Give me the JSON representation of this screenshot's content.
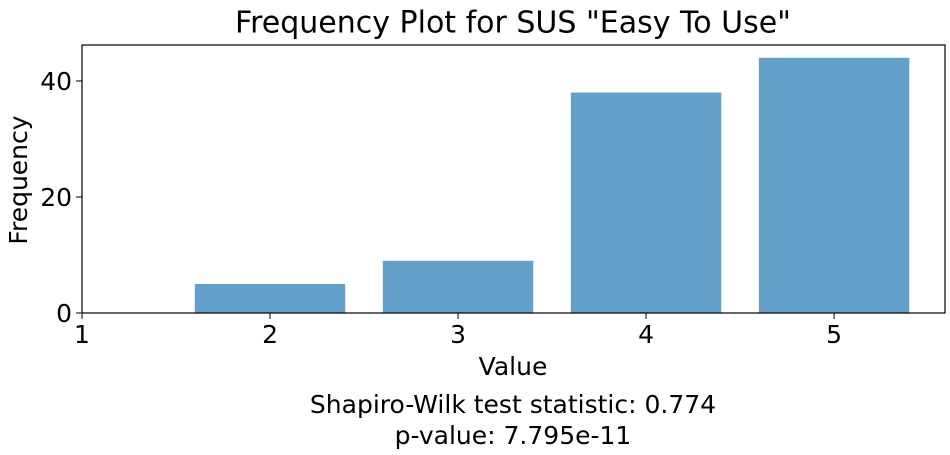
{
  "chart_data": {
    "type": "bar",
    "title": "Frequency Plot for SUS \"Easy To Use\"",
    "x_label": "Value",
    "y_label": "Frequency",
    "x": [
      2,
      3,
      4,
      5
    ],
    "values": [
      5,
      9,
      38,
      44
    ],
    "color": "#62a0ca",
    "xlim": [
      1,
      5.59
    ],
    "xticks": [
      1,
      2,
      3,
      4,
      5
    ],
    "ylim": [
      0,
      46.2
    ],
    "yticks": [
      0,
      20,
      40
    ],
    "annotations": [
      "Shapiro-Wilk test statistic: 0.774",
      "p-value: 7.795e-11"
    ]
  }
}
